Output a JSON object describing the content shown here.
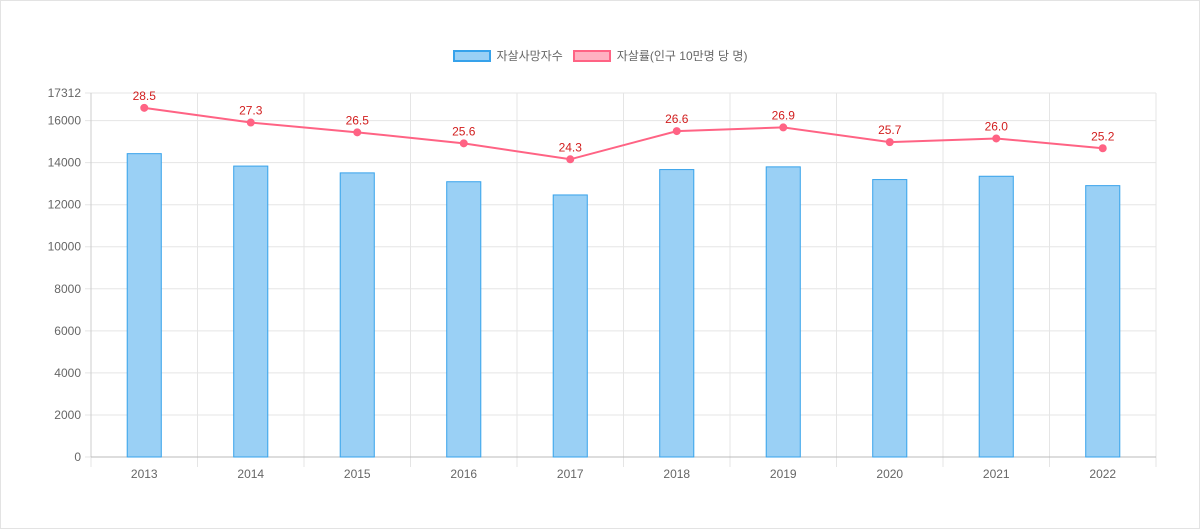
{
  "colors": {
    "bar_fill": "#9ad0f5",
    "bar_stroke": "#36a2eb",
    "line": "#ff6384",
    "line_fill": "#ffb1c1",
    "data_label": "#d21f1f",
    "grid": "#e5e5e5",
    "axis_text": "#666666"
  },
  "chart_data": {
    "type": "bar",
    "categories": [
      "2013",
      "2014",
      "2015",
      "2016",
      "2017",
      "2018",
      "2019",
      "2020",
      "2021",
      "2022"
    ],
    "series": [
      {
        "name": "자살사망자수",
        "type": "bar",
        "values": [
          14427,
          13836,
          13513,
          13092,
          12463,
          13670,
          13799,
          13195,
          13352,
          12906
        ]
      },
      {
        "name": "자살률(인구 10만명 당 명)",
        "type": "line",
        "values": [
          28.5,
          27.3,
          26.5,
          25.6,
          24.3,
          26.6,
          26.9,
          25.7,
          26.0,
          25.2
        ],
        "value_labels": [
          "28.5",
          "27.3",
          "26.5",
          "25.6",
          "24.3",
          "26.6",
          "26.9",
          "25.7",
          "26.0",
          "25.2"
        ]
      }
    ],
    "y_axis": {
      "min": 0,
      "max": 17312,
      "ticks": [
        "0",
        "2000",
        "4000",
        "6000",
        "8000",
        "10000",
        "12000",
        "14000",
        "16000",
        "17312"
      ]
    },
    "line_axis_range": [
      0,
      29.71
    ],
    "grid": true,
    "legend_position": "top"
  }
}
